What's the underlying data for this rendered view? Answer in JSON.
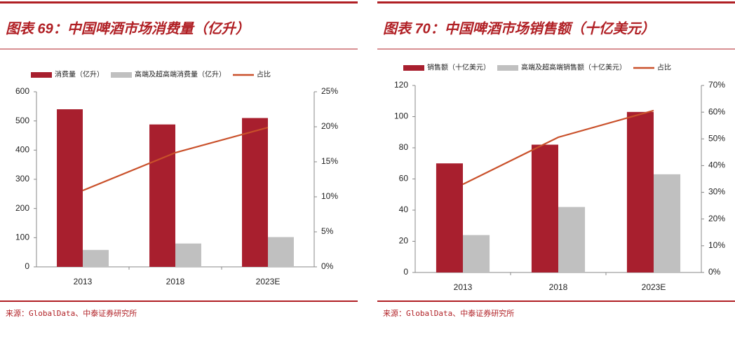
{
  "chart_data": [
    {
      "type": "bar",
      "title": "图表 69：中国啤酒市场消费量（亿升）",
      "source": "来源：GlobalData、中泰证券研究所",
      "categories": [
        "2013",
        "2018",
        "2023E"
      ],
      "series": [
        {
          "name": "消费量（亿升）",
          "color": "#a81f2e",
          "values": [
            540,
            488,
            510
          ]
        },
        {
          "name": "高端及超高端消费量（亿升）",
          "color": "#c0c0c0",
          "values": [
            58,
            80,
            102
          ]
        },
        {
          "name": "占比",
          "color": "#c9502a",
          "type": "line",
          "axis": "y2",
          "values": [
            10.9,
            16.3,
            19.9
          ]
        }
      ],
      "ylim": [
        0,
        600
      ],
      "yticks": [
        0,
        100,
        200,
        300,
        400,
        500,
        600
      ],
      "y2lim": [
        0,
        25
      ],
      "y2ticks": [
        {
          "value": 0,
          "label": "0%"
        },
        {
          "value": 5,
          "label": "5%"
        },
        {
          "value": 10,
          "label": "10%"
        },
        {
          "value": 15,
          "label": "15%"
        },
        {
          "value": 20,
          "label": "20%"
        },
        {
          "value": 25,
          "label": "25%"
        }
      ],
      "grid": false
    },
    {
      "type": "bar",
      "title": "图表 70：中国啤酒市场销售额（十亿美元）",
      "source": "来源：GlobalData、中泰证券研究所",
      "categories": [
        "2013",
        "2018",
        "2023E"
      ],
      "series": [
        {
          "name": "销售额（十亿美元）",
          "color": "#a81f2e",
          "values": [
            70,
            82,
            103
          ]
        },
        {
          "name": "高端及超高端销售额（十亿美元）",
          "color": "#c0c0c0",
          "values": [
            24,
            42,
            63
          ]
        },
        {
          "name": "占比",
          "color": "#c9502a",
          "type": "line",
          "axis": "y2",
          "values": [
            33,
            50.6,
            60.6
          ]
        }
      ],
      "ylim": [
        0,
        120
      ],
      "yticks": [
        0,
        20,
        40,
        60,
        80,
        100,
        120
      ],
      "y2lim": [
        0,
        70
      ],
      "y2ticks": [
        {
          "value": 0,
          "label": "0%"
        },
        {
          "value": 10,
          "label": "10%"
        },
        {
          "value": 20,
          "label": "20%"
        },
        {
          "value": 30,
          "label": "30%"
        },
        {
          "value": 40,
          "label": "40%"
        },
        {
          "value": 50,
          "label": "50%"
        },
        {
          "value": 60,
          "label": "60%"
        },
        {
          "value": 70,
          "label": "70%"
        }
      ],
      "grid": false
    }
  ]
}
